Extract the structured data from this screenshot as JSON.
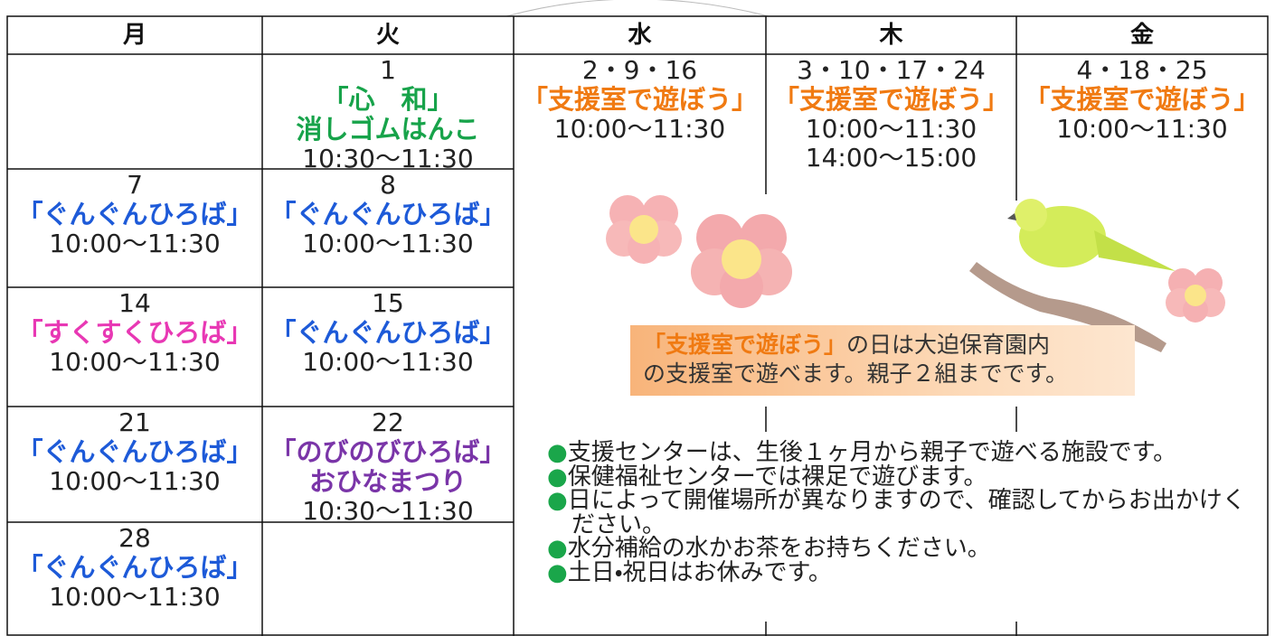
{
  "calendar": {
    "weekdays": [
      "月",
      "火",
      "水",
      "木",
      "金"
    ],
    "cells": [
      {
        "date": "1",
        "title": [
          "「心　和」",
          "消しゴムはんこ"
        ],
        "times": [
          "10:30～11:30"
        ],
        "color": "#17a34a"
      },
      {
        "date": "7",
        "title": [
          "「ぐんぐんひろば」"
        ],
        "times": [
          "10:00～11:30"
        ],
        "color": "#1d5ad8"
      },
      {
        "date": "8",
        "title": [
          "「ぐんぐんひろば」"
        ],
        "times": [
          "10:00～11:30"
        ],
        "color": "#1d5ad8"
      },
      {
        "date": "14",
        "title": [
          "「すくすくひろば」"
        ],
        "times": [
          "10:00～11:30"
        ],
        "color": "#e838b4"
      },
      {
        "date": "15",
        "title": [
          "「ぐんぐんひろば」"
        ],
        "times": [
          "10:00～11:30"
        ],
        "color": "#1d5ad8"
      },
      {
        "date": "21",
        "title": [
          "「ぐんぐんひろば」"
        ],
        "times": [
          "10:00～11:30"
        ],
        "color": "#1d5ad8"
      },
      {
        "date": "22",
        "title": [
          "「のびのびひろば」",
          "おひなまつり"
        ],
        "times": [
          "10:30～11:30"
        ],
        "color": "#7a35a8"
      },
      {
        "date": "28",
        "title": [
          "「ぐんぐんひろば」"
        ],
        "times": [
          "10:00～11:30"
        ],
        "color": "#1d5ad8"
      },
      {
        "date": "2・9・16",
        "title": [
          "「支援室で遊ぼう」"
        ],
        "times": [
          "10:00～11:30"
        ],
        "color": "#f07a12"
      },
      {
        "date": "3・10・17・24",
        "title": [
          "「支援室で遊ぼう」"
        ],
        "times": [
          "10:00～11:30",
          "14:00～15:00"
        ],
        "color": "#f07a12"
      },
      {
        "date": "4・18・25",
        "title": [
          "「支援室で遊ぼう」"
        ],
        "times": [
          "10:00～11:30"
        ],
        "color": "#f07a12"
      }
    ]
  },
  "note": {
    "highlight": "「支援室で遊ぼう」",
    "line1": "の日は大迫保育園内",
    "line2": "の支援室で遊べます。親子２組までです。"
  },
  "bullets": {
    "marker": "●",
    "items": [
      "支援センターは、生後１ヶ月から親子で遊べる施設です。",
      "保健福祉センターでは裸足で遊びます。",
      "日によって開催場所が異なりますので、確認してからお出かけください。",
      "水分補給の水かお茶をお持ちください。",
      "土日・祝日はお休みです。"
    ]
  }
}
